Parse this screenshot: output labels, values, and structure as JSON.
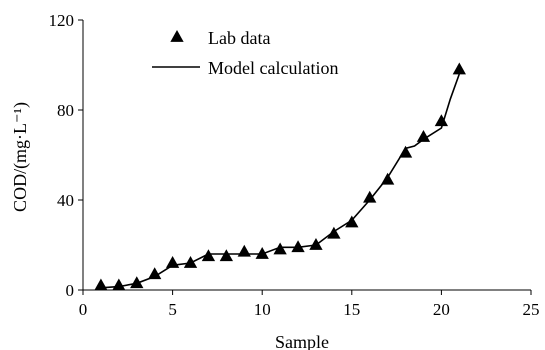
{
  "chart_data": {
    "type": "scatter",
    "xlabel": "Sample",
    "ylabel": "COD/(mg·L⁻¹)",
    "xlim": [
      0,
      25
    ],
    "ylim": [
      0,
      120
    ],
    "x_ticks": [
      0,
      5,
      10,
      15,
      20,
      25
    ],
    "y_ticks": [
      0,
      40,
      80,
      120
    ],
    "grid": false,
    "legend_position": "top-left",
    "series": [
      {
        "name": "Lab data",
        "kind": "scatter",
        "marker": "triangle",
        "color": "#000000",
        "x": [
          1,
          2,
          3,
          4,
          5,
          6,
          7,
          8,
          9,
          10,
          11,
          12,
          13,
          14,
          15,
          16,
          17,
          18,
          19,
          20,
          21
        ],
        "y": [
          2,
          2,
          3,
          7,
          12,
          12,
          15,
          15,
          17,
          16,
          18,
          19,
          20,
          25,
          30,
          41,
          49,
          61,
          68,
          75,
          98
        ]
      },
      {
        "name": "Model calculation",
        "kind": "line",
        "color": "#000000",
        "x": [
          1,
          2,
          3,
          4,
          5,
          6,
          7,
          8,
          9,
          10,
          11,
          12,
          13,
          14,
          15,
          16,
          17,
          18,
          18.5,
          19,
          20,
          20.5,
          21
        ],
        "y": [
          1,
          1.5,
          3,
          6,
          11,
          12,
          16,
          16,
          16,
          16,
          19,
          19,
          20,
          26,
          31,
          40,
          50,
          63,
          64,
          67,
          72,
          85,
          96
        ]
      }
    ]
  }
}
